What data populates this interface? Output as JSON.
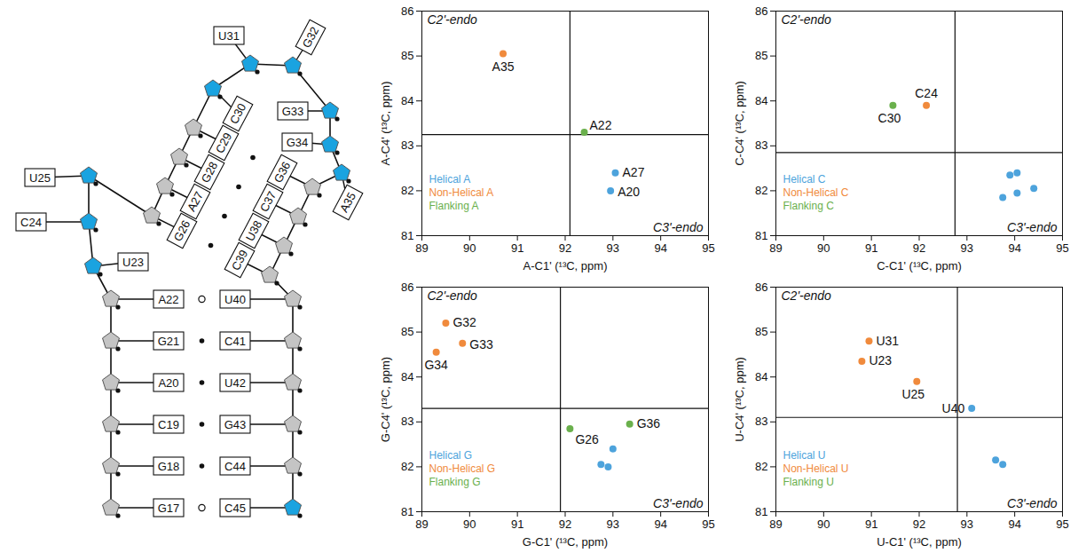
{
  "diagram": {
    "nucleotides": [
      {
        "label": "G17",
        "highlight": false
      },
      {
        "label": "G18",
        "highlight": false
      },
      {
        "label": "C19",
        "highlight": false
      },
      {
        "label": "A20",
        "highlight": false
      },
      {
        "label": "G21",
        "highlight": false
      },
      {
        "label": "A22",
        "highlight": false
      },
      {
        "label": "U23",
        "highlight": true
      },
      {
        "label": "C24",
        "highlight": true
      },
      {
        "label": "U25",
        "highlight": true
      },
      {
        "label": "G26",
        "highlight": false
      },
      {
        "label": "A27",
        "highlight": false
      },
      {
        "label": "G28",
        "highlight": false
      },
      {
        "label": "C29",
        "highlight": false
      },
      {
        "label": "C30",
        "highlight": true
      },
      {
        "label": "U31",
        "highlight": true
      },
      {
        "label": "G32",
        "highlight": true
      },
      {
        "label": "G33",
        "highlight": true
      },
      {
        "label": "G34",
        "highlight": true
      },
      {
        "label": "A35",
        "highlight": true
      },
      {
        "label": "G36",
        "highlight": false
      },
      {
        "label": "C37",
        "highlight": false
      },
      {
        "label": "U38",
        "highlight": false
      },
      {
        "label": "C39",
        "highlight": false
      },
      {
        "label": "U40",
        "highlight": false
      },
      {
        "label": "C41",
        "highlight": false
      },
      {
        "label": "U42",
        "highlight": false
      },
      {
        "label": "G43",
        "highlight": false
      },
      {
        "label": "C44",
        "highlight": false
      },
      {
        "label": "C45",
        "highlight": true
      }
    ],
    "pairs": [
      {
        "a": "G17",
        "b": "C45",
        "type": "non-canonical"
      },
      {
        "a": "G18",
        "b": "C44",
        "type": "canonical"
      },
      {
        "a": "C19",
        "b": "G43",
        "type": "canonical"
      },
      {
        "a": "A20",
        "b": "U42",
        "type": "canonical"
      },
      {
        "a": "G21",
        "b": "C41",
        "type": "canonical"
      },
      {
        "a": "A22",
        "b": "U40",
        "type": "non-canonical"
      },
      {
        "a": "G26",
        "b": "C39",
        "type": "canonical"
      },
      {
        "a": "A27",
        "b": "U38",
        "type": "canonical"
      },
      {
        "a": "G28",
        "b": "C37",
        "type": "canonical"
      },
      {
        "a": "C29",
        "b": "G36",
        "type": "canonical"
      }
    ]
  },
  "chart_data": [
    {
      "type": "scatter",
      "xlabel": "A-C1' (¹³C, ppm)",
      "ylabel": "A-C4' (¹³C, ppm)",
      "xlim": [
        89,
        95
      ],
      "xticks": [
        89,
        90,
        91,
        92,
        93,
        94,
        95
      ],
      "ylim": [
        81,
        86
      ],
      "yticks": [
        81,
        82,
        83,
        84,
        85,
        86
      ],
      "dividers": {
        "x": 92.1,
        "y": 83.25
      },
      "annotations": [
        "C2'-endo",
        "C3'-endo"
      ],
      "legend": "bottom-left",
      "series": [
        {
          "name": "Helical A",
          "color": "#4da3dc",
          "x": [
            93.05,
            92.95
          ],
          "values": [
            82.4,
            82.0
          ],
          "labels": [
            "A27",
            "A20"
          ]
        },
        {
          "name": "Non-Helical A",
          "color": "#f08a3c",
          "x": [
            90.7
          ],
          "values": [
            85.05
          ],
          "labels": [
            "A35"
          ]
        },
        {
          "name": "Flanking A",
          "color": "#6ab04c",
          "x": [
            92.4
          ],
          "values": [
            83.3
          ],
          "labels": [
            "A22"
          ]
        }
      ]
    },
    {
      "type": "scatter",
      "xlabel": "C-C1' (¹³C, ppm)",
      "ylabel": "C-C4' (¹³C, ppm)",
      "xlim": [
        89,
        95
      ],
      "xticks": [
        89,
        90,
        91,
        92,
        93,
        94,
        95
      ],
      "ylim": [
        81,
        86
      ],
      "yticks": [
        81,
        82,
        83,
        84,
        85,
        86
      ],
      "dividers": {
        "x": 92.75,
        "y": 82.85
      },
      "annotations": [
        "C2'-endo",
        "C3'-endo"
      ],
      "legend": "bottom-left",
      "series": [
        {
          "name": "Helical C",
          "color": "#4da3dc",
          "x": [
            93.9,
            94.05,
            93.75,
            94.05,
            94.4
          ],
          "values": [
            82.35,
            82.4,
            81.85,
            81.95,
            82.05
          ],
          "labels": [
            null,
            null,
            null,
            null,
            null
          ]
        },
        {
          "name": "Non-Helical C",
          "color": "#f08a3c",
          "x": [
            92.15
          ],
          "values": [
            83.9
          ],
          "labels": [
            "C24"
          ]
        },
        {
          "name": "Flanking C",
          "color": "#6ab04c",
          "x": [
            91.45
          ],
          "values": [
            83.9
          ],
          "labels": [
            "C30"
          ]
        }
      ]
    },
    {
      "type": "scatter",
      "xlabel": "G-C1' (¹³C, ppm)",
      "ylabel": "G-C4' (¹³C, ppm)",
      "xlim": [
        89,
        95
      ],
      "xticks": [
        89,
        90,
        91,
        92,
        93,
        94,
        95
      ],
      "ylim": [
        81,
        86
      ],
      "yticks": [
        81,
        82,
        83,
        84,
        85,
        86
      ],
      "dividers": {
        "x": 91.9,
        "y": 83.3
      },
      "annotations": [
        "C2'-endo",
        "C3'-endo"
      ],
      "legend": "bottom-left",
      "series": [
        {
          "name": "Helical G",
          "color": "#4da3dc",
          "x": [
            92.75,
            92.9,
            93.0
          ],
          "values": [
            82.05,
            82.0,
            82.4
          ],
          "labels": [
            null,
            null,
            null
          ]
        },
        {
          "name": "Non-Helical G",
          "color": "#f08a3c",
          "x": [
            89.5,
            89.85,
            89.3
          ],
          "values": [
            85.2,
            84.75,
            84.55
          ],
          "labels": [
            "G32",
            "G33",
            "G34"
          ]
        },
        {
          "name": "Flanking G",
          "color": "#6ab04c",
          "x": [
            92.1,
            93.35
          ],
          "values": [
            82.85,
            82.95
          ],
          "labels": [
            "G26",
            "G36"
          ]
        }
      ]
    },
    {
      "type": "scatter",
      "xlabel": "U-C1' (¹³C, ppm)",
      "ylabel": "U-C4' (¹³C, ppm)",
      "xlim": [
        89,
        95
      ],
      "xticks": [
        89,
        90,
        91,
        92,
        93,
        94,
        95
      ],
      "ylim": [
        81,
        86
      ],
      "yticks": [
        81,
        82,
        83,
        84,
        85,
        86
      ],
      "dividers": {
        "x": 92.8,
        "y": 83.1
      },
      "annotations": [
        "C2'-endo",
        "C3'-endo"
      ],
      "legend": "bottom-left",
      "series": [
        {
          "name": "Helical U",
          "color": "#4da3dc",
          "x": [
            93.1,
            93.6,
            93.75
          ],
          "values": [
            83.3,
            82.15,
            82.05
          ],
          "labels": [
            "U40",
            null,
            null
          ]
        },
        {
          "name": "Non-Helical U",
          "color": "#f08a3c",
          "x": [
            90.95,
            90.8,
            91.95
          ],
          "values": [
            84.8,
            84.35,
            83.9
          ],
          "labels": [
            "U31",
            "U23",
            "U25"
          ]
        },
        {
          "name": "Flanking U",
          "color": "#6ab04c",
          "x": [],
          "values": [],
          "labels": []
        }
      ]
    }
  ]
}
